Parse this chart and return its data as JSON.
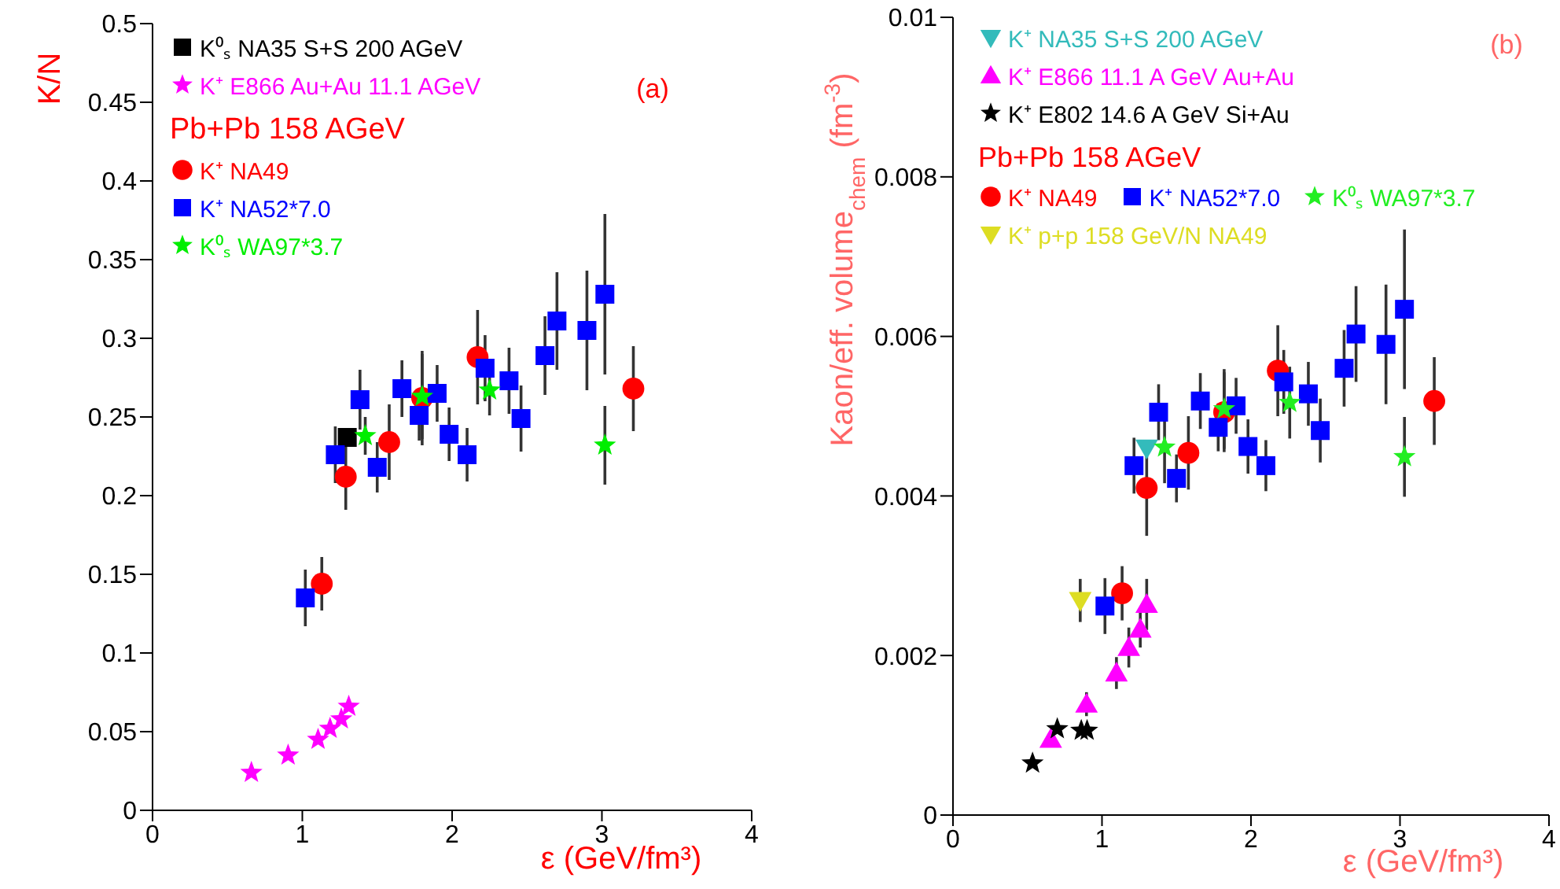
{
  "chart_data": [
    {
      "type": "scatter",
      "xlabel": "ε (GeV/fm³)",
      "ylabel": "K/N",
      "xlim": [
        0,
        4
      ],
      "xticks": [
        0,
        1,
        2,
        3,
        4
      ],
      "ylim": [
        0,
        0.5
      ],
      "yticks": [
        0,
        0.05,
        0.1,
        0.15,
        0.2,
        0.25,
        0.3,
        0.35,
        0.4,
        0.45,
        0.5
      ],
      "legend": "top left",
      "annotations": [
        "(a)",
        "Pb+Pb 158 AGeV"
      ],
      "series": [
        {
          "name": "K⁰ₛ NA35 S+S 200 AGeV",
          "color": "#000000",
          "marker": "square",
          "x": [
            1.3
          ],
          "values": [
            0.237
          ]
        },
        {
          "name": "K⁺ E866 Au+Au 11.1 AGeV",
          "color": "#ff00ff",
          "marker": "star",
          "x": [
            0.66,
            0.905,
            1.105,
            1.185,
            1.26,
            1.31
          ],
          "values": [
            0.024,
            0.035,
            0.045,
            0.052,
            0.058,
            0.066
          ]
        },
        {
          "name": "K⁺ NA49",
          "color": "#ff0000",
          "marker": "circle",
          "x": [
            1.13,
            1.29,
            1.58,
            1.8,
            2.17,
            3.21
          ],
          "values": [
            0.144,
            0.212,
            0.234,
            0.262,
            0.288,
            0.268
          ],
          "errors": [
            0.017,
            0.021,
            0.024,
            0.03,
            0.03,
            0.027
          ]
        },
        {
          "name": "K⁺ NA52*7.0",
          "color": "#0000ff",
          "marker": "square",
          "x": [
            1.02,
            1.22,
            1.385,
            1.5,
            1.665,
            1.78,
            1.9,
            1.98,
            2.1,
            2.22,
            2.38,
            2.46,
            2.62,
            2.7,
            2.9,
            3.02
          ],
          "values": [
            0.135,
            0.226,
            0.261,
            0.218,
            0.268,
            0.251,
            0.265,
            0.239,
            0.226,
            0.281,
            0.273,
            0.249,
            0.289,
            0.311,
            0.305,
            0.328
          ],
          "errors": [
            0.018,
            0.018,
            0.019,
            0.016,
            0.018,
            0.016,
            0.018,
            0.017,
            0.017,
            0.021,
            0.021,
            0.021,
            0.025,
            0.031,
            0.038,
            0.051
          ]
        },
        {
          "name": "K⁰ₛ WA97*3.7",
          "color": "#00ee00",
          "marker": "star",
          "x": [
            1.42,
            1.8,
            2.25,
            3.02
          ],
          "values": [
            0.238,
            0.263,
            0.267,
            0.232
          ],
          "errors": [
            0.012,
            0.027,
            0.016,
            0.025
          ]
        }
      ]
    },
    {
      "type": "scatter",
      "xlabel": "ε (GeV/fm³)",
      "ylabel": "Kaon/eff. volume$_{chem}$ (fm$^{-3}$)",
      "xlim": [
        0,
        4
      ],
      "xticks": [
        0,
        1,
        2,
        3,
        4
      ],
      "ylim": [
        0,
        0.01
      ],
      "yticks": [
        0,
        0.002,
        0.004,
        0.006,
        0.008,
        0.01
      ],
      "legend": "top left",
      "annotations": [
        "(b)",
        "Pb+Pb 158 AGeV"
      ],
      "series": [
        {
          "name": "K⁺ NA35 S+S 200 AGeV",
          "color": "#33bbbb",
          "marker": "triangle-down",
          "x": [
            1.3
          ],
          "values": [
            0.0046
          ]
        },
        {
          "name": "K⁺ E866 11.1 A GeV Au+Au",
          "color": "#ff00ff",
          "marker": "triangle",
          "x": [
            0.656,
            0.896,
            1.097,
            1.18,
            1.257,
            1.3
          ],
          "values": [
            0.00095,
            0.00139,
            0.00178,
            0.0021,
            0.00233,
            0.00264
          ],
          "errors": [
            0.0001,
            0.00015,
            0.0002,
            0.00025,
            0.00023,
            0.00032
          ]
        },
        {
          "name": "K⁺ E802 14.6 A GeV Si+Au",
          "color": "#000000",
          "marker": "star",
          "x": [
            0.534,
            0.7,
            0.861,
            0.9
          ],
          "values": [
            0.00065,
            0.00108,
            0.00106,
            0.00106
          ]
        },
        {
          "name": "K⁺ NA49",
          "color": "#ff0000",
          "marker": "circle",
          "x": [
            1.135,
            1.3,
            1.58,
            1.82,
            2.18,
            3.23
          ],
          "values": [
            0.00278,
            0.0041,
            0.00454,
            0.00505,
            0.00557,
            0.00519
          ],
          "errors": [
            0.00034,
            0.0006,
            0.00046,
            0.0005,
            0.00057,
            0.00055
          ]
        },
        {
          "name": "K⁺ NA52*7.0",
          "color": "#0000ff",
          "marker": "square",
          "x": [
            1.02,
            1.215,
            1.38,
            1.5,
            1.66,
            1.78,
            1.9,
            1.98,
            2.1,
            2.22,
            2.385,
            2.465,
            2.625,
            2.705,
            2.906,
            3.03
          ],
          "values": [
            0.00262,
            0.00438,
            0.00505,
            0.00422,
            0.00519,
            0.00486,
            0.00513,
            0.00462,
            0.00438,
            0.00543,
            0.00528,
            0.00482,
            0.0056,
            0.00603,
            0.0059,
            0.00634
          ],
          "errors": [
            0.00035,
            0.00035,
            0.00035,
            0.0003,
            0.00035,
            0.0003,
            0.00035,
            0.00034,
            0.00032,
            0.0004,
            0.0004,
            0.0004,
            0.00048,
            0.0006,
            0.00075,
            0.001
          ]
        },
        {
          "name": "K⁰ₛ WA97*3.7",
          "color": "#22ee22",
          "marker": "star",
          "x": [
            1.42,
            1.82,
            2.26,
            3.03
          ],
          "values": [
            0.00461,
            0.00509,
            0.00517,
            0.00449
          ],
          "errors": [
            0.00045,
            0.0005,
            0.00045,
            0.0005
          ]
        },
        {
          "name": "K⁺ p+p 158 GeV/N NA49",
          "color": "#dddd22",
          "marker": "triangle-down",
          "x": [
            0.854
          ],
          "values": [
            0.00269
          ],
          "errors": [
            0.00027
          ]
        }
      ]
    }
  ]
}
